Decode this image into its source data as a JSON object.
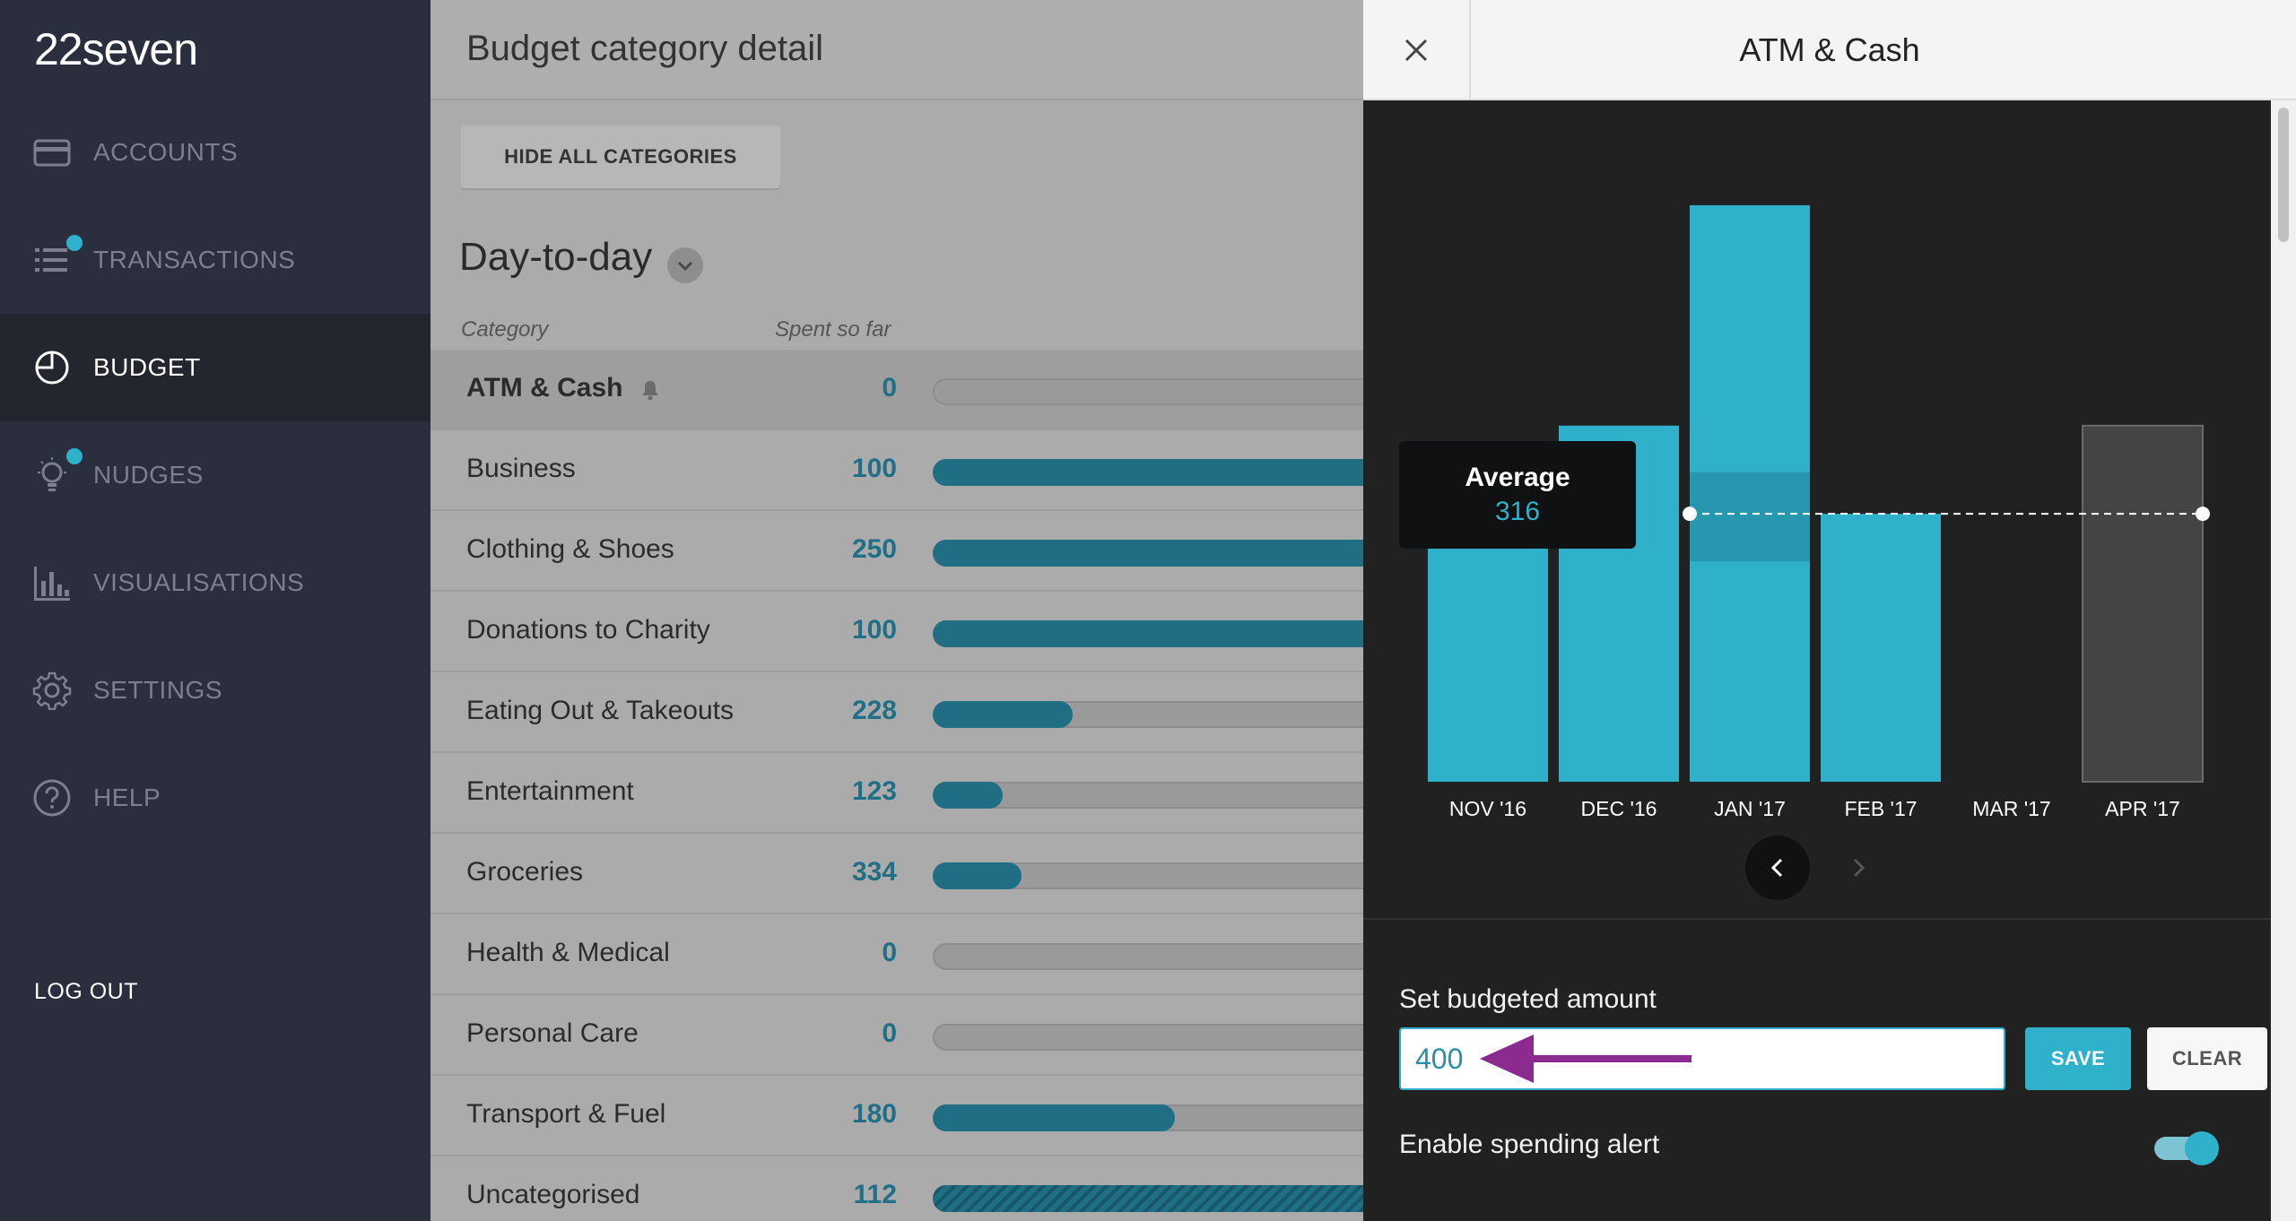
{
  "app": {
    "logo": "22seven"
  },
  "sidebar": {
    "items": [
      {
        "label": "ACCOUNTS",
        "icon": "card-icon",
        "active": false,
        "badge": false
      },
      {
        "label": "TRANSACTIONS",
        "icon": "list-icon",
        "active": false,
        "badge": true
      },
      {
        "label": "BUDGET",
        "icon": "pie-icon",
        "active": true,
        "badge": false
      },
      {
        "label": "NUDGES",
        "icon": "lightbulb-icon",
        "active": false,
        "badge": true
      },
      {
        "label": "VISUALISATIONS",
        "icon": "bar-chart-icon",
        "active": false,
        "badge": false
      },
      {
        "label": "SETTINGS",
        "icon": "gear-icon",
        "active": false,
        "badge": false
      },
      {
        "label": "HELP",
        "icon": "help-icon",
        "active": false,
        "badge": false
      }
    ],
    "logout": "LOG OUT",
    "badge_color": "#2fb0cb"
  },
  "main": {
    "title": "Budget category detail",
    "hide_button": "HIDE ALL CATEGORIES",
    "group_title": "Day-to-day",
    "col_category": "Category",
    "col_spent": "Spent so far",
    "rows": [
      {
        "name": "ATM & Cash",
        "value": "0",
        "progress": 0,
        "selected": true,
        "bell": true
      },
      {
        "name": "Business",
        "value": "100",
        "progress": 1.0
      },
      {
        "name": "Clothing & Shoes",
        "value": "250",
        "progress": 1.0
      },
      {
        "name": "Donations to Charity",
        "value": "100",
        "progress": 1.0
      },
      {
        "name": "Eating Out & Takeouts",
        "value": "228",
        "progress": 0.3
      },
      {
        "name": "Entertainment",
        "value": "123",
        "progress": 0.15
      },
      {
        "name": "Groceries",
        "value": "334",
        "progress": 0.19
      },
      {
        "name": "Health & Medical",
        "value": "0",
        "progress": 0
      },
      {
        "name": "Personal Care",
        "value": "0",
        "progress": 0
      },
      {
        "name": "Transport & Fuel",
        "value": "180",
        "progress": 0.52
      },
      {
        "name": "Uncategorised",
        "value": "112",
        "progress": 1.0,
        "striped": true
      }
    ]
  },
  "panel": {
    "title": "ATM & Cash",
    "budget_label": "Set budgeted amount",
    "budget_value": "400",
    "save": "SAVE",
    "clear": "CLEAR",
    "alert_label": "Enable spending alert",
    "alert_enabled": true,
    "annotation_color": "#8b2a8f"
  },
  "chart_data": {
    "type": "bar",
    "categories": [
      "NOV '16",
      "DEC '16",
      "JAN '17",
      "FEB '17",
      "MAR '17",
      "APR '17"
    ],
    "values": [
      316,
      420,
      680,
      316,
      0,
      420
    ],
    "highlight_band": {
      "category": "JAN '17",
      "from": 260,
      "to": 365
    },
    "forecast_category": "APR '17",
    "average_label": "Average",
    "average": 316,
    "ylim": [
      0,
      700
    ],
    "colors": {
      "bar": "#2fb0cb",
      "band": "#2697ae",
      "forecast": "#444444"
    }
  }
}
